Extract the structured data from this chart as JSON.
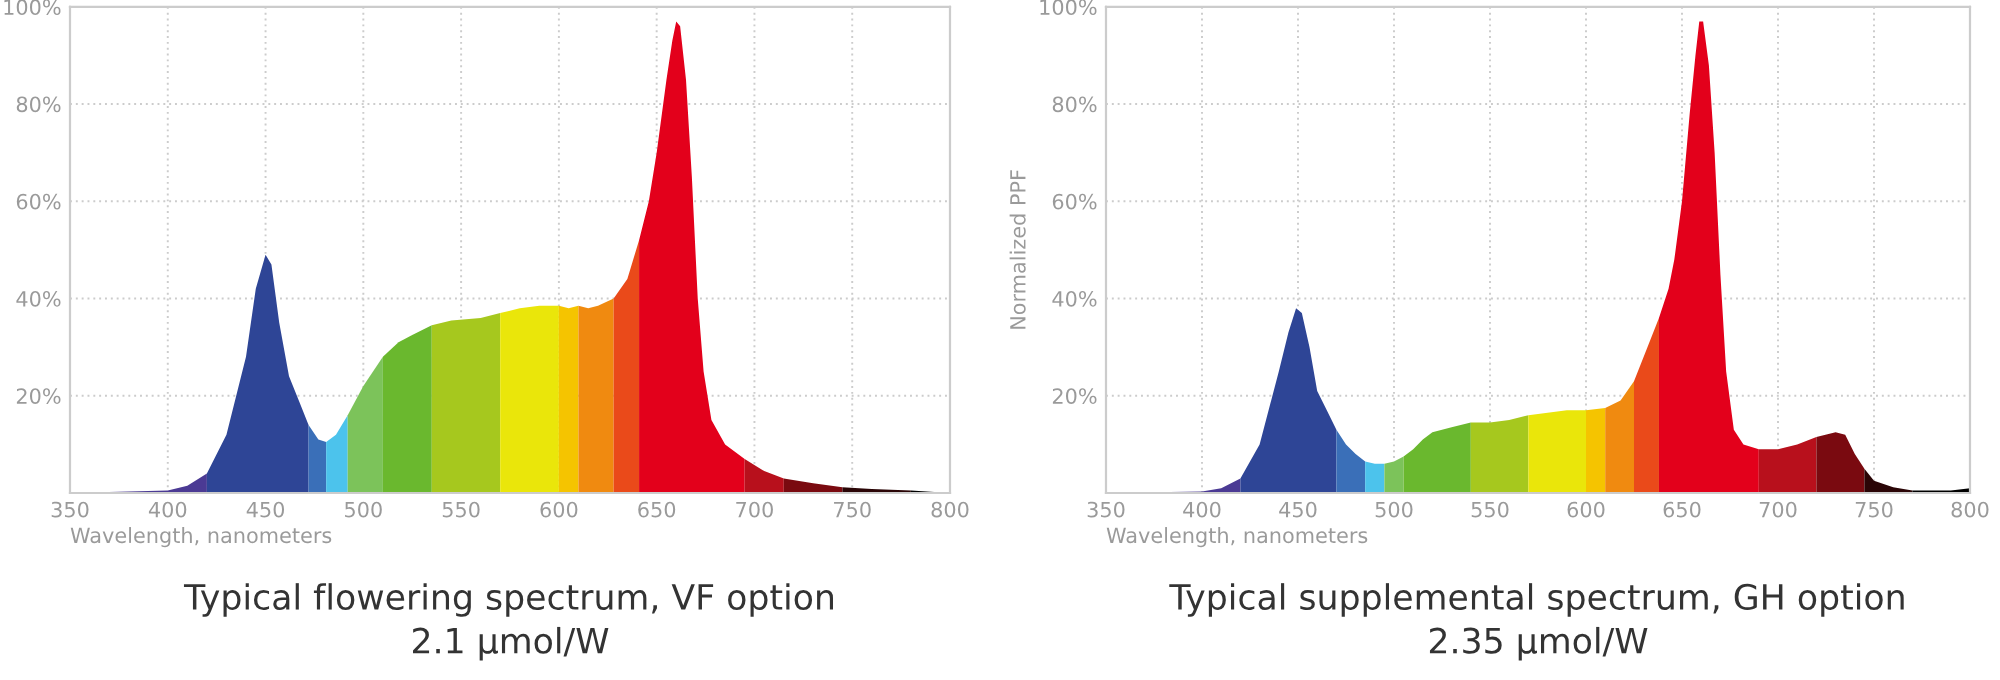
{
  "chart_data": [
    {
      "type": "area",
      "title": "Typical flowering spectrum, VF option",
      "subtitle": "2.1 µmol/W",
      "xlabel": "Wavelength, nanometers",
      "xlim": [
        350,
        800
      ],
      "xticks": [
        350,
        400,
        450,
        500,
        550,
        600,
        650,
        700,
        750,
        800
      ],
      "ylim": [
        0,
        100
      ],
      "yticks": [
        {
          "value": 20,
          "label": "20%"
        },
        {
          "value": 40,
          "label": "40%"
        },
        {
          "value": 60,
          "label": "60%"
        },
        {
          "value": 80,
          "label": "80%"
        },
        {
          "value": 100,
          "label": "100%"
        }
      ],
      "grid": true,
      "series": [
        {
          "color": "#4b3a94",
          "x": [
            350,
            400,
            410,
            420
          ],
          "values": [
            0,
            0.5,
            1.5,
            4
          ]
        },
        {
          "color": "#2e4596",
          "x": [
            420,
            430,
            440,
            445,
            450,
            453,
            457,
            462,
            467,
            472
          ],
          "values": [
            4,
            12,
            28,
            42,
            49,
            47,
            35,
            24,
            19,
            14
          ]
        },
        {
          "color": "#3a6fb8",
          "x": [
            472,
            477,
            481
          ],
          "values": [
            14,
            11,
            10.5
          ]
        },
        {
          "color": "#4cc3ec",
          "x": [
            481,
            486,
            492
          ],
          "values": [
            10.5,
            12,
            16
          ]
        },
        {
          "color": "#7cc35a",
          "x": [
            492,
            500,
            510
          ],
          "values": [
            16,
            22,
            28
          ]
        },
        {
          "color": "#6ab82e",
          "x": [
            510,
            518,
            525,
            535
          ],
          "values": [
            28,
            31,
            32.5,
            34.5
          ]
        },
        {
          "color": "#a6c81e",
          "x": [
            535,
            545,
            560,
            570
          ],
          "values": [
            34.5,
            35.5,
            36,
            37
          ]
        },
        {
          "color": "#eae60a",
          "x": [
            570,
            580,
            590,
            600
          ],
          "values": [
            37,
            38,
            38.5,
            38.5
          ]
        },
        {
          "color": "#f5c400",
          "x": [
            600,
            605,
            610
          ],
          "values": [
            38.5,
            38,
            38.5
          ]
        },
        {
          "color": "#f08a10",
          "x": [
            610,
            615,
            620,
            628
          ],
          "values": [
            38.5,
            38,
            38.5,
            40
          ]
        },
        {
          "color": "#ea4a1a",
          "x": [
            628,
            635,
            641
          ],
          "values": [
            40,
            44,
            52
          ]
        },
        {
          "color": "#e3001b",
          "x": [
            641,
            646,
            650,
            655,
            658,
            660,
            662,
            665,
            668,
            671,
            674,
            678,
            685,
            695
          ],
          "values": [
            52,
            60,
            70,
            85,
            93,
            97,
            96,
            85,
            65,
            40,
            25,
            15,
            10,
            7
          ]
        },
        {
          "color": "#b8101c",
          "x": [
            695,
            705,
            715
          ],
          "values": [
            7,
            4.5,
            3
          ]
        },
        {
          "color": "#7a0a10",
          "x": [
            715,
            730,
            745
          ],
          "values": [
            3,
            2,
            1.2
          ]
        },
        {
          "color": "#2a0506",
          "x": [
            745,
            760,
            780
          ],
          "values": [
            1.2,
            0.8,
            0.5
          ]
        },
        {
          "color": "#000000",
          "x": [
            780,
            800
          ],
          "values": [
            0.5,
            0
          ]
        }
      ]
    },
    {
      "type": "area",
      "title": "Typical supplemental spectrum, GH option",
      "subtitle": "2.35 µmol/W",
      "xlabel": "Wavelength, nanometers",
      "ylabel": "Normalized PPF",
      "xlim": [
        350,
        800
      ],
      "xticks": [
        350,
        400,
        450,
        500,
        550,
        600,
        650,
        700,
        750,
        800
      ],
      "ylim": [
        0,
        100
      ],
      "yticks": [
        {
          "value": 20,
          "label": "20%"
        },
        {
          "value": 40,
          "label": "40%"
        },
        {
          "value": 60,
          "label": "60%"
        },
        {
          "value": 80,
          "label": "80%"
        },
        {
          "value": 100,
          "label": "100%"
        }
      ],
      "grid": true,
      "series": [
        {
          "color": "#4b3a94",
          "x": [
            350,
            400,
            410,
            420
          ],
          "values": [
            0,
            0.3,
            1,
            3
          ]
        },
        {
          "color": "#2e4596",
          "x": [
            420,
            430,
            440,
            445,
            449,
            452,
            456,
            460,
            465,
            470
          ],
          "values": [
            3,
            10,
            25,
            33,
            38,
            37,
            30,
            21,
            17,
            13
          ]
        },
        {
          "color": "#3a6fb8",
          "x": [
            470,
            475,
            480,
            485
          ],
          "values": [
            13,
            10,
            8,
            6.5
          ]
        },
        {
          "color": "#4cc3ec",
          "x": [
            485,
            490,
            495
          ],
          "values": [
            6.5,
            6,
            6
          ]
        },
        {
          "color": "#7cc35a",
          "x": [
            495,
            500,
            505
          ],
          "values": [
            6,
            6.5,
            7.5
          ]
        },
        {
          "color": "#6ab82e",
          "x": [
            505,
            510,
            515,
            520,
            530,
            540
          ],
          "values": [
            7.5,
            9,
            11,
            12.5,
            13.5,
            14.5
          ]
        },
        {
          "color": "#a6c81e",
          "x": [
            540,
            550,
            560,
            570
          ],
          "values": [
            14.5,
            14.5,
            15,
            16
          ]
        },
        {
          "color": "#eae60a",
          "x": [
            570,
            580,
            590,
            600
          ],
          "values": [
            16,
            16.5,
            17,
            17
          ]
        },
        {
          "color": "#f5c400",
          "x": [
            600,
            610
          ],
          "values": [
            17,
            17.5
          ]
        },
        {
          "color": "#f08a10",
          "x": [
            610,
            618,
            625
          ],
          "values": [
            17.5,
            19,
            23
          ]
        },
        {
          "color": "#ea4a1a",
          "x": [
            625,
            632,
            638
          ],
          "values": [
            23,
            30,
            36
          ]
        },
        {
          "color": "#e3001b",
          "x": [
            638,
            643,
            646,
            650,
            654,
            657,
            659,
            661,
            664,
            667,
            670,
            673,
            677,
            682,
            690
          ],
          "values": [
            36,
            42,
            48,
            60,
            78,
            90,
            97,
            97,
            88,
            70,
            45,
            25,
            13,
            10,
            9
          ]
        },
        {
          "color": "#b8101c",
          "x": [
            690,
            700,
            710,
            720
          ],
          "values": [
            9,
            9,
            10,
            11.5
          ]
        },
        {
          "color": "#7a0a10",
          "x": [
            720,
            730,
            735,
            740,
            745
          ],
          "values": [
            11.5,
            12.5,
            12,
            8,
            5
          ]
        },
        {
          "color": "#2a0506",
          "x": [
            745,
            750,
            760,
            770
          ],
          "values": [
            5,
            2.5,
            1.2,
            0.5
          ]
        },
        {
          "color": "#000000",
          "x": [
            770,
            790,
            800
          ],
          "values": [
            0.5,
            0.5,
            1
          ]
        }
      ]
    }
  ]
}
